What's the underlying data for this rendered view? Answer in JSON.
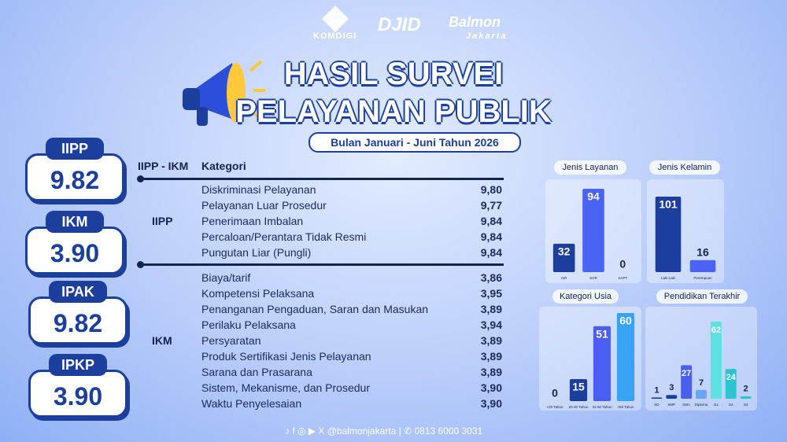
{
  "logos": [
    "KOMDIGI",
    "DJID",
    "Balmon",
    "Jakarta"
  ],
  "header": {
    "title_line1": "HASIL SURVEI",
    "title_line2": "PELAYANAN PUBLIK",
    "subtitle": "Bulan Januari - Juni Tahun 2026"
  },
  "cards": [
    {
      "label": "IIPP",
      "value": "9.82"
    },
    {
      "label": "IKM",
      "value": "3.90"
    },
    {
      "label": "IPAK",
      "value": "9.82"
    },
    {
      "label": "IPKP",
      "value": "3.90"
    }
  ],
  "table": {
    "header": [
      "IIPP - IKM",
      "Kategori"
    ],
    "groups": [
      {
        "name": "IIPP",
        "rows": [
          [
            "Diskriminasi Pelayanan",
            "9,80"
          ],
          [
            "Pelayanan Luar Prosedur",
            "9,77"
          ],
          [
            "Penerimaan Imbalan",
            "9,84"
          ],
          [
            "Percaloan/Perantara Tidak Resmi",
            "9,84"
          ],
          [
            "Pungutan Liar (Pungli)",
            "9,84"
          ]
        ]
      },
      {
        "name": "IKM",
        "rows": [
          [
            "Biaya/tarif",
            "3,86"
          ],
          [
            "Kompetensi Pelaksana",
            "3,95"
          ],
          [
            "Penanganan Pengaduan, Saran dan Masukan",
            "3,89"
          ],
          [
            "Perilaku Pelaksana",
            "3,94"
          ],
          [
            "Persyaratan",
            "3,89"
          ],
          [
            "Produk Sertifikasi Jenis Pelayanan",
            "3,89"
          ],
          [
            "Sarana dan Prasarana",
            "3,89"
          ],
          [
            "Sistem, Mekanisme, dan Prosedur",
            "3,90"
          ],
          [
            "Waktu Penyelesaian",
            "3,90"
          ]
        ]
      }
    ]
  },
  "chart_data": [
    {
      "type": "bar",
      "title": "Jenis Layanan",
      "categories": [
        "ISR",
        "SOR",
        "SAPT"
      ],
      "values": [
        32,
        94,
        0
      ],
      "colors": [
        "#1c3f9e",
        "#4a63f2",
        "#4a63f2"
      ]
    },
    {
      "type": "bar",
      "title": "Jenis Kelamin",
      "categories": [
        "Laki-Laki",
        "Perempuan"
      ],
      "values": [
        101,
        16
      ],
      "colors": [
        "#1c3f9e",
        "#4a63f2"
      ]
    },
    {
      "type": "bar",
      "title": "Kategori Usia",
      "categories": [
        "<20 Tahun",
        "20-30 Tahun",
        "31-50 Tahun",
        ">50 Tahun"
      ],
      "values": [
        0,
        15,
        51,
        60
      ],
      "colors": [
        "#1c3f9e",
        "#1c3f9e",
        "#4a5ef0",
        "#38a3f2"
      ]
    },
    {
      "type": "bar",
      "title": "Pendidikan Terakhir",
      "categories": [
        "SD",
        "SMP",
        "SMA",
        "Diploma",
        "S1",
        "S2",
        "S3"
      ],
      "values": [
        1,
        3,
        27,
        7,
        62,
        24,
        2
      ],
      "colors": [
        "#1c3f9e",
        "#1c3f9e",
        "#4a5ef0",
        "#6aa6f5",
        "#5fe0e0",
        "#2cc4d0",
        "#2cc4d0"
      ]
    }
  ],
  "footer": {
    "handle": "@balmonjakarta",
    "phone": "0813 6000 3031"
  }
}
